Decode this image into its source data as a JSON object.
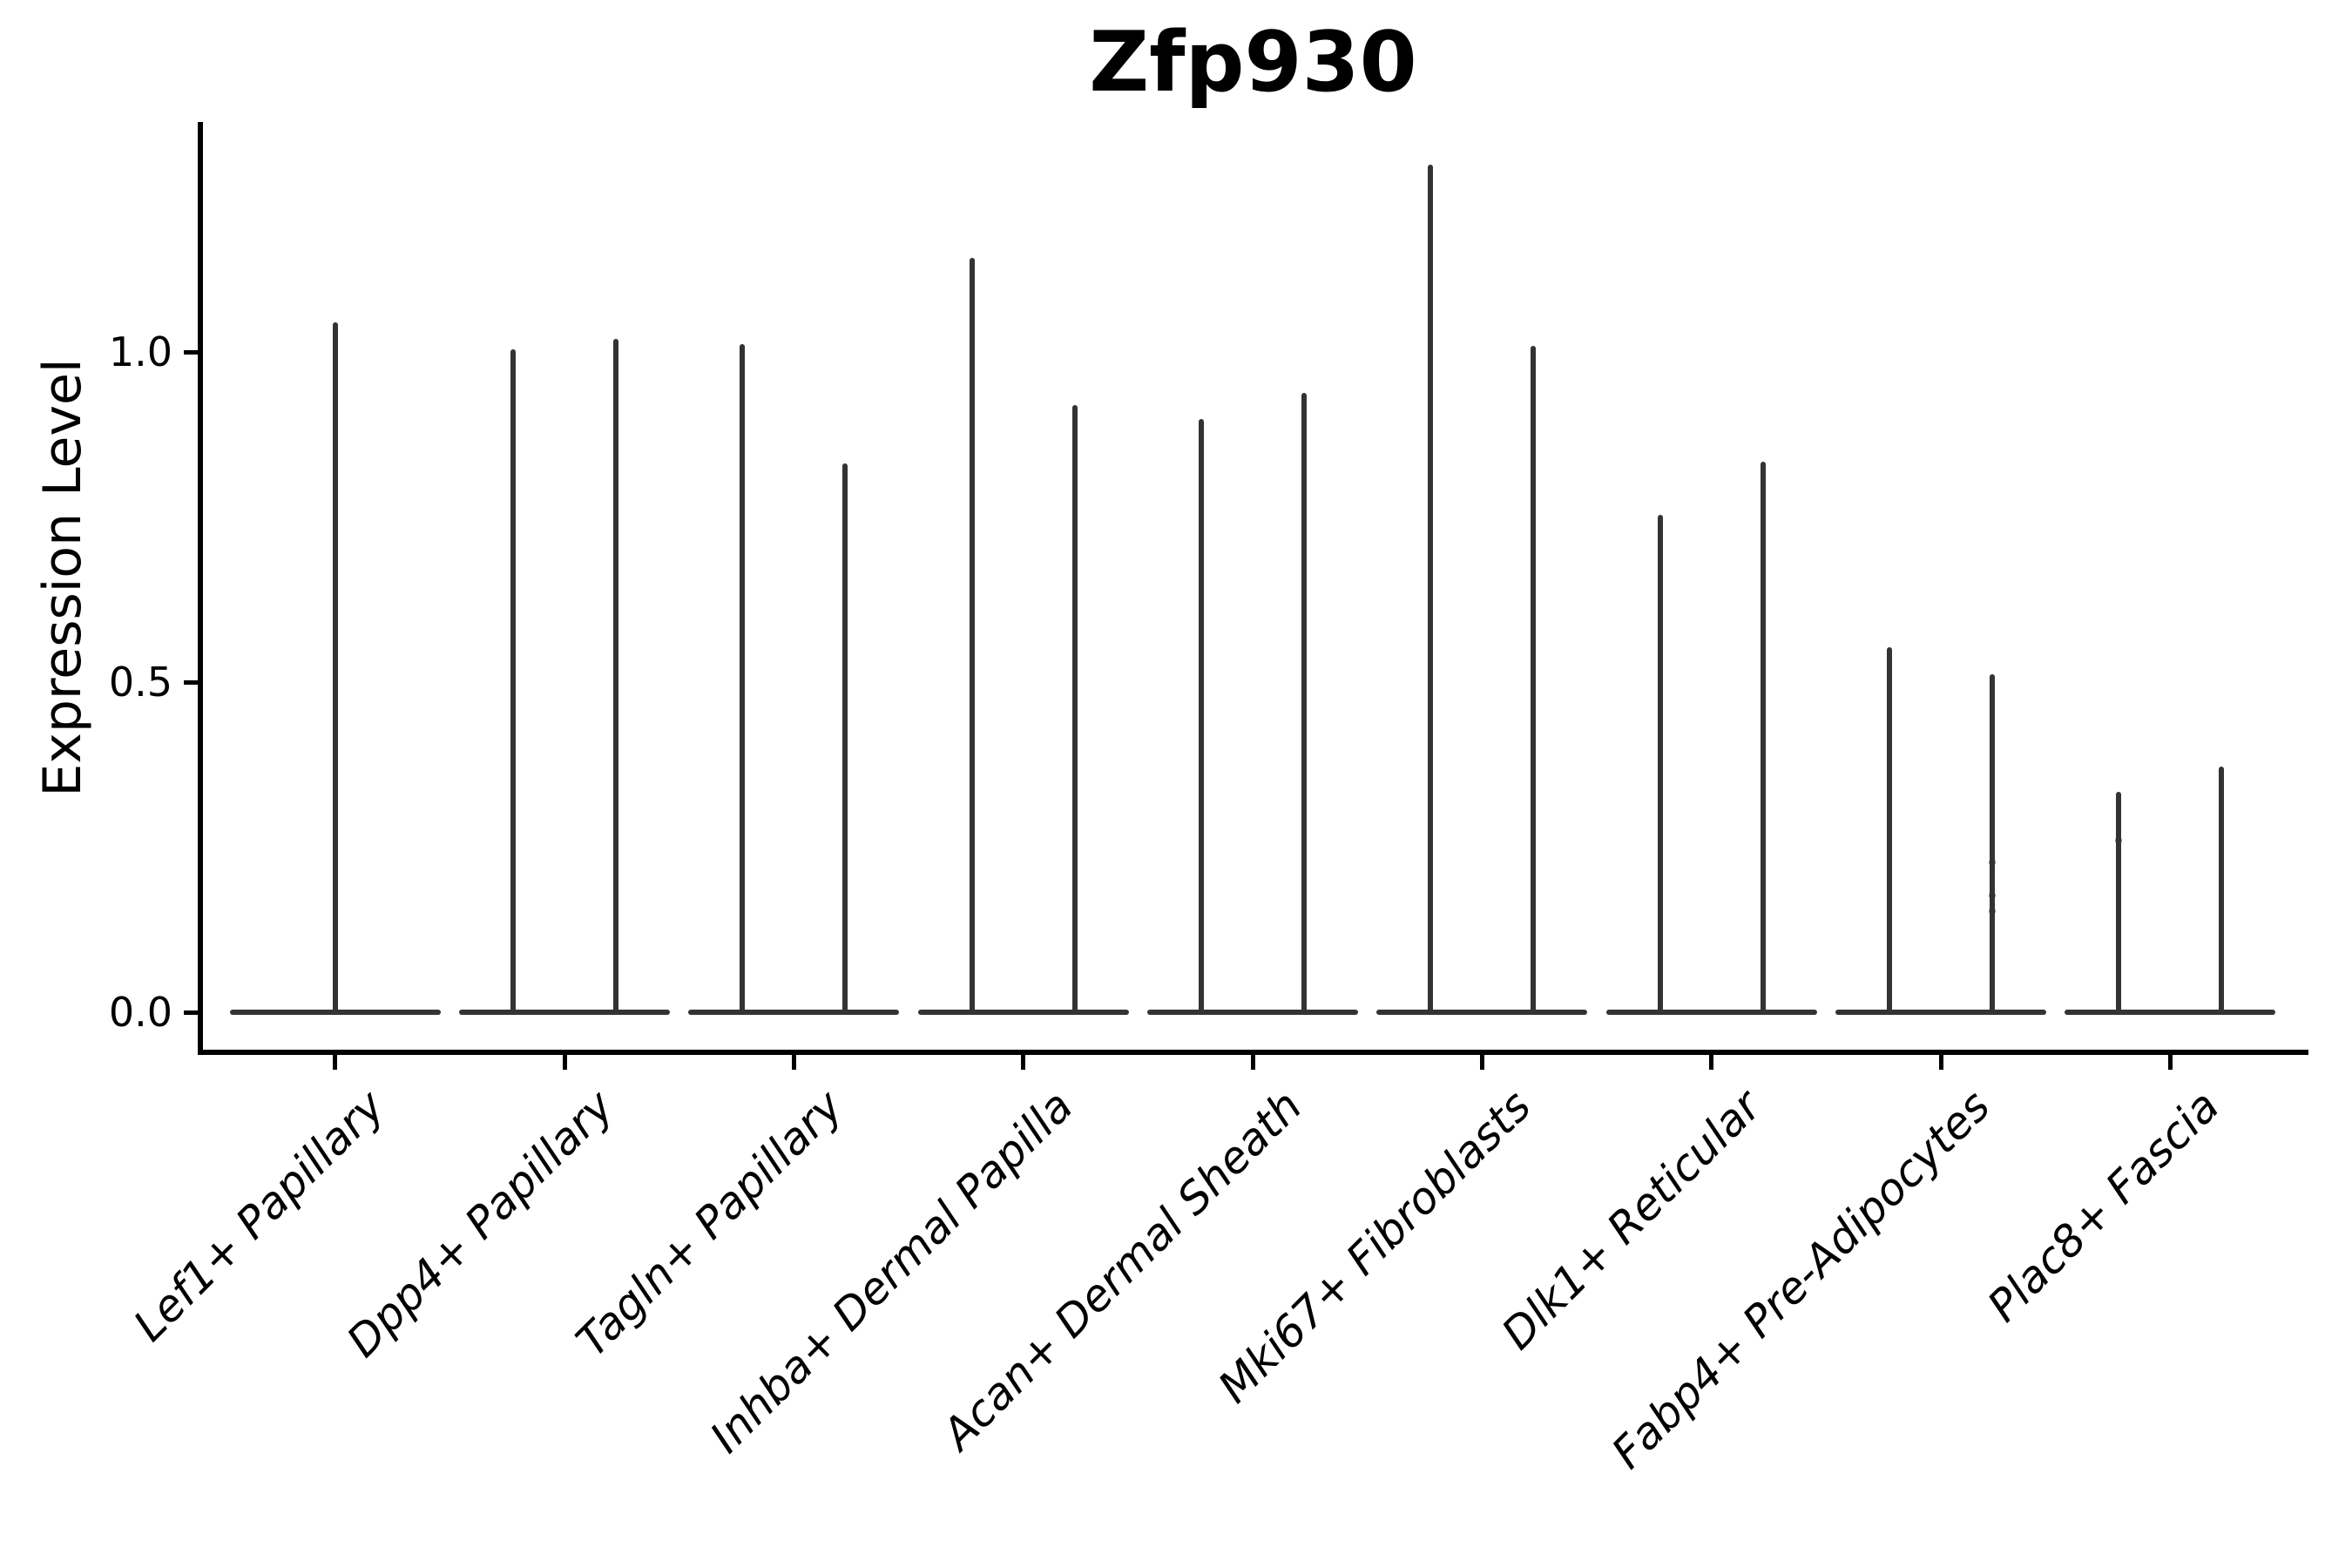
{
  "chart_data": {
    "type": "violin",
    "title": "Zfp930",
    "ylabel": "Expression Level",
    "xlabel": "",
    "yticks": [
      {
        "label": "0.0",
        "value": 0.0
      },
      {
        "label": "0.5",
        "value": 0.5
      },
      {
        "label": "1.0",
        "value": 1.0
      }
    ],
    "ylim": [
      -0.06,
      1.35
    ],
    "grid": false,
    "legend": "none",
    "violin_shape_note": "each violin is nearly flat at 0 with a thin vertical spike up to its max expression value",
    "categories": [
      "Lef1+ Papillary",
      "Dpp4+ Papillary",
      "Tagln+ Papillary",
      "Inhba+ Dermal Papilla",
      "Acan+ Dermal Sheath",
      "Mki67+ Fibroblasts",
      "Dlk1+ Reticular",
      "Fabp4+ Pre-Adipocytes",
      "Plac8+ Fascia"
    ],
    "violins": [
      {
        "category": "Lef1+ Papillary",
        "spike_max_values": [
          1.045
        ]
      },
      {
        "category": "Dpp4+ Papillary",
        "spike_max_values": [
          1.004,
          1.02
        ]
      },
      {
        "category": "Tagln+ Papillary",
        "spike_max_values": [
          1.012,
          0.831
        ]
      },
      {
        "category": "Inhba+ Dermal Papilla",
        "spike_max_values": [
          1.142,
          0.92
        ]
      },
      {
        "category": "Acan+ Dermal Sheath",
        "spike_max_values": [
          0.898,
          0.938
        ]
      },
      {
        "category": "Mki67+ Fibroblasts",
        "spike_max_values": [
          1.284,
          1.009
        ]
      },
      {
        "category": "Dlk1+ Reticular",
        "spike_max_values": [
          0.753,
          0.834
        ]
      },
      {
        "category": "Fabp4+ Pre-Adipocytes",
        "spike_max_values": [
          0.553,
          0.512
        ]
      },
      {
        "category": "Plac8+ Fascia",
        "spike_max_values": [
          0.334,
          0.372
        ]
      }
    ],
    "jitter_points": [
      {
        "category_index": 7,
        "spike_index": 1,
        "value": 0.227
      },
      {
        "category_index": 7,
        "spike_index": 1,
        "value": 0.177
      },
      {
        "category_index": 7,
        "spike_index": 1,
        "value": 0.153
      },
      {
        "category_index": 8,
        "spike_index": 0,
        "value": 0.26
      }
    ]
  },
  "colors": {
    "background": "#ffffff",
    "axis": "#000000",
    "text": "#000000",
    "violin_stroke": "#333333"
  }
}
